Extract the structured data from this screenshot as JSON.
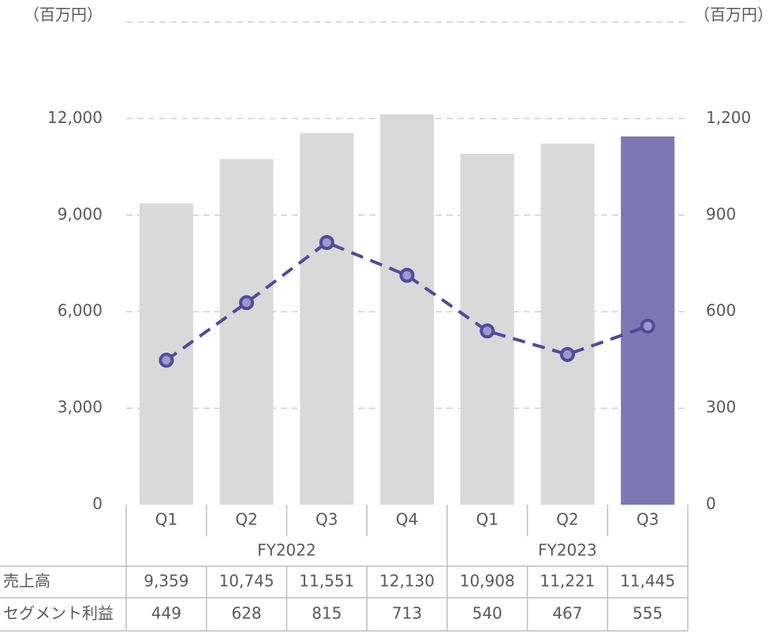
{
  "chart_data": {
    "type": "bar_line",
    "y_unit": "（百万円）",
    "y2_unit": "（百万円）",
    "groups": [
      {
        "name": "FY2022",
        "categories": [
          "Q1",
          "Q2",
          "Q3",
          "Q4"
        ]
      },
      {
        "name": "FY2023",
        "categories": [
          "Q1",
          "Q2",
          "Q3"
        ]
      }
    ],
    "series": [
      {
        "name": "売上高",
        "type": "bar",
        "colors": [
          "#d9d9d9",
          "#d9d9d9",
          "#d9d9d9",
          "#d9d9d9",
          "#d9d9d9",
          "#d9d9d9",
          "#7f77b4"
        ],
        "values": [
          9359,
          10745,
          11551,
          12130,
          10908,
          11221,
          11445
        ],
        "value_labels": [
          "9,359",
          "10,745",
          "11,551",
          "12,130",
          "10,908",
          "11,221",
          "11,445"
        ]
      },
      {
        "name": "セグメント利益",
        "type": "line",
        "axis": "y2",
        "color": "#54499a",
        "marker_fill": "#9f98cf",
        "dashed": true,
        "values": [
          449,
          628,
          815,
          713,
          540,
          467,
          555
        ],
        "value_labels": [
          "449",
          "628",
          "815",
          "713",
          "540",
          "467",
          "555"
        ]
      }
    ],
    "ylim": [
      0,
      15000
    ],
    "yticks": [
      0,
      {
        "value": 3000,
        "label": "3,000"
      },
      {
        "value": 6000,
        "label": "6,000"
      },
      {
        "value": 9000,
        "label": "9,000"
      },
      {
        "value": 12000,
        "label": "12,000"
      }
    ],
    "y2lim": [
      0,
      1500
    ],
    "y2ticks": [
      0,
      300,
      600,
      900,
      {
        "value": 1200,
        "label": "1,200"
      }
    ],
    "grid": true
  }
}
